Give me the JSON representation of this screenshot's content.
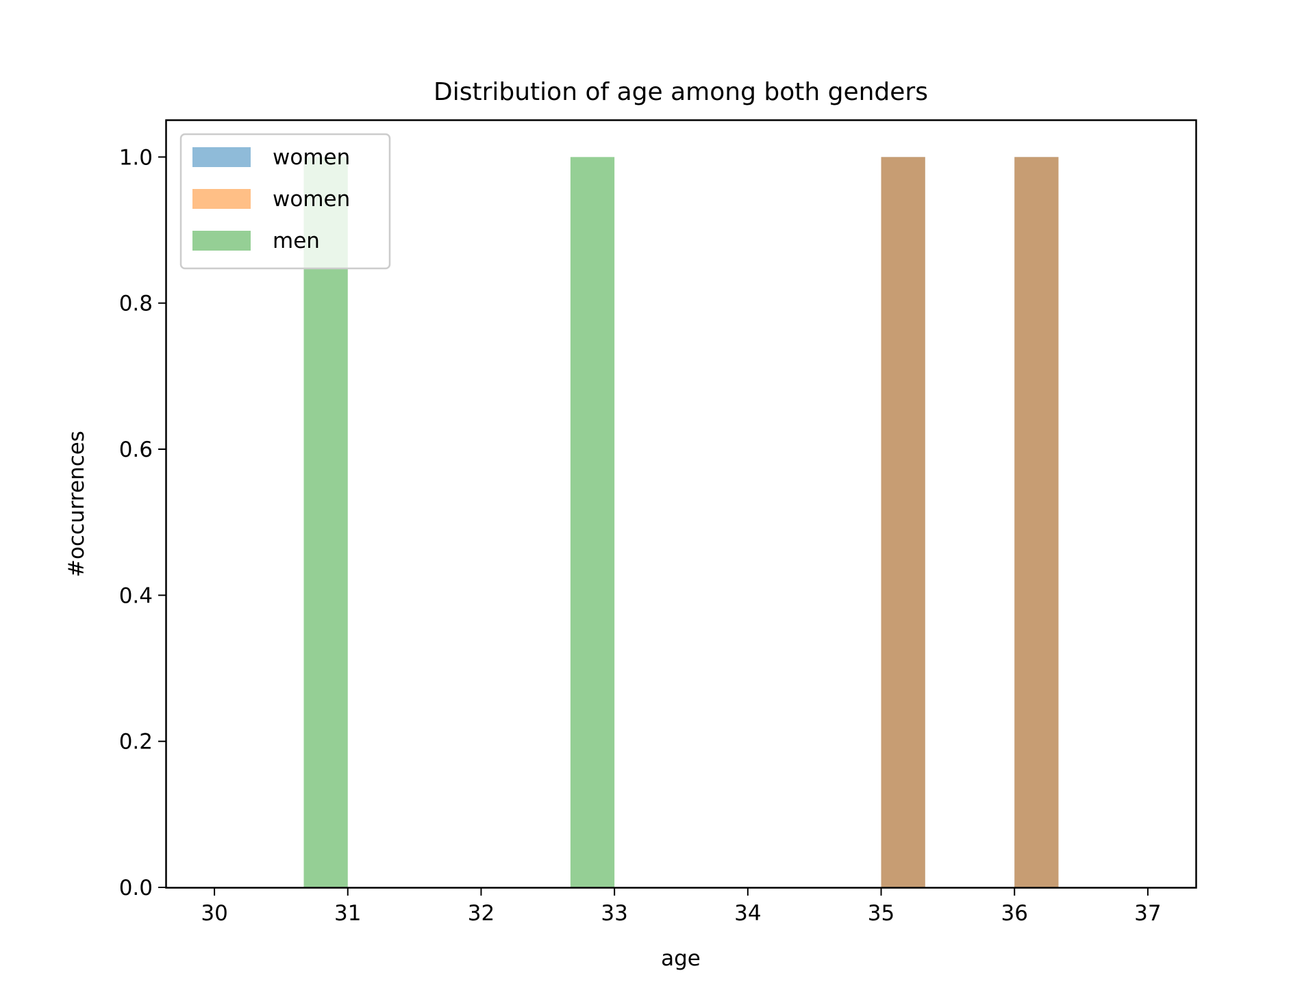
{
  "chart_data": {
    "type": "bar",
    "title": "Distribution of age among both genders",
    "xlabel": "age",
    "ylabel": "#occurrences",
    "xlim": [
      29.64,
      37.36
    ],
    "ylim": [
      0.0,
      1.05
    ],
    "xticks": [
      "30",
      "31",
      "32",
      "33",
      "34",
      "35",
      "36",
      "37"
    ],
    "yticks": [
      "0.0",
      "0.2",
      "0.4",
      "0.6",
      "0.8",
      "1.0"
    ],
    "grid": false,
    "legend": "top-left",
    "series": [
      {
        "name": "women",
        "color": "#1f77b4",
        "alpha": 0.5,
        "bars": [
          {
            "x0": 35.0,
            "x1": 35.33,
            "value": 1
          },
          {
            "x0": 36.0,
            "x1": 36.33,
            "value": 1
          }
        ]
      },
      {
        "name": "women",
        "color": "#ff7f0e",
        "alpha": 0.5,
        "bars": [
          {
            "x0": 35.0,
            "x1": 35.33,
            "value": 1
          },
          {
            "x0": 36.0,
            "x1": 36.33,
            "value": 1
          }
        ]
      },
      {
        "name": "men",
        "color": "#2ca02c",
        "alpha": 0.5,
        "bars": [
          {
            "x0": 30.67,
            "x1": 31.0,
            "value": 1
          },
          {
            "x0": 32.67,
            "x1": 33.0,
            "value": 1
          }
        ]
      }
    ]
  }
}
